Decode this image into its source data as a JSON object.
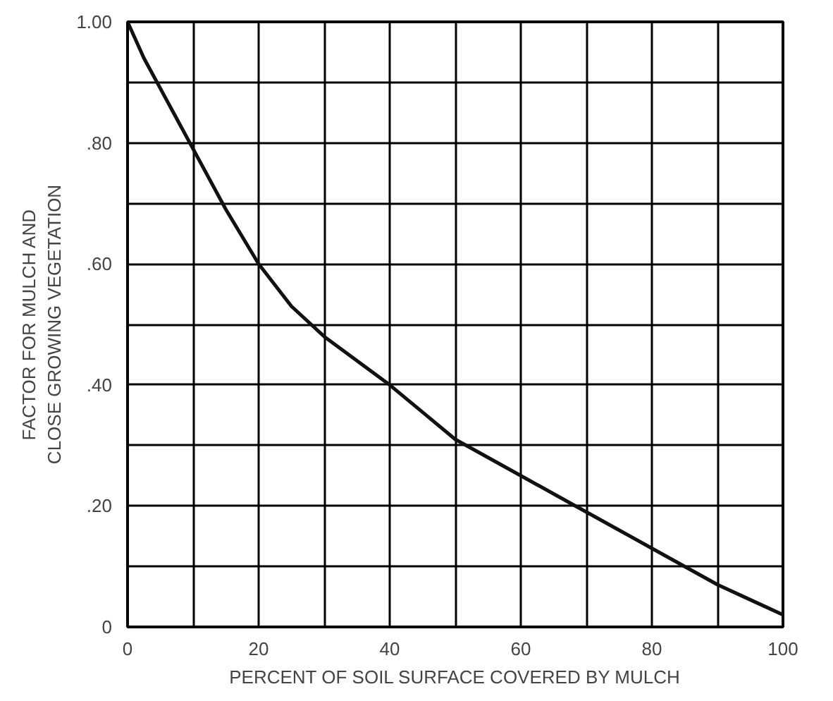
{
  "chart_data": {
    "type": "line",
    "xlabel": "PERCENT OF SOIL SURFACE COVERED BY MULCH",
    "ylabel": "FACTOR FOR MULCH AND\nCLOSE GROWING VEGETATION",
    "x": [
      0,
      2.5,
      5,
      7.5,
      10,
      15,
      20,
      25,
      30,
      35,
      40,
      45,
      50,
      55,
      60,
      65,
      70,
      75,
      80,
      85,
      90,
      95,
      100
    ],
    "series": [
      {
        "color": "#111111",
        "values": [
          1.0,
          0.94,
          0.89,
          0.84,
          0.79,
          0.69,
          0.6,
          0.53,
          0.48,
          0.44,
          0.4,
          0.355,
          0.31,
          0.28,
          0.25,
          0.22,
          0.19,
          0.16,
          0.13,
          0.1,
          0.07,
          0.045,
          0.02
        ]
      }
    ],
    "xlim": [
      0,
      100
    ],
    "ylim": [
      0,
      1
    ],
    "xticks": [
      0,
      {
        "value": 10,
        "label": null
      },
      20,
      {
        "value": 30,
        "label": null
      },
      40,
      {
        "value": 50,
        "label": null
      },
      60,
      {
        "value": 70,
        "label": null
      },
      80,
      {
        "value": 90,
        "label": null
      },
      100
    ],
    "yticks": [
      0,
      {
        "value": 0.1,
        "label": null
      },
      {
        "value": 0.2,
        "label": ".20"
      },
      {
        "value": 0.3,
        "label": null
      },
      {
        "value": 0.4,
        "label": ".40"
      },
      {
        "value": 0.5,
        "label": null
      },
      {
        "value": 0.6,
        "label": ".60"
      },
      {
        "value": 0.7,
        "label": null
      },
      {
        "value": 0.8,
        "label": ".80"
      },
      {
        "value": 0.9,
        "label": null
      },
      {
        "value": 1.0,
        "label": "1.00"
      }
    ],
    "grid": true,
    "marker": "none",
    "line_style": "solid"
  }
}
